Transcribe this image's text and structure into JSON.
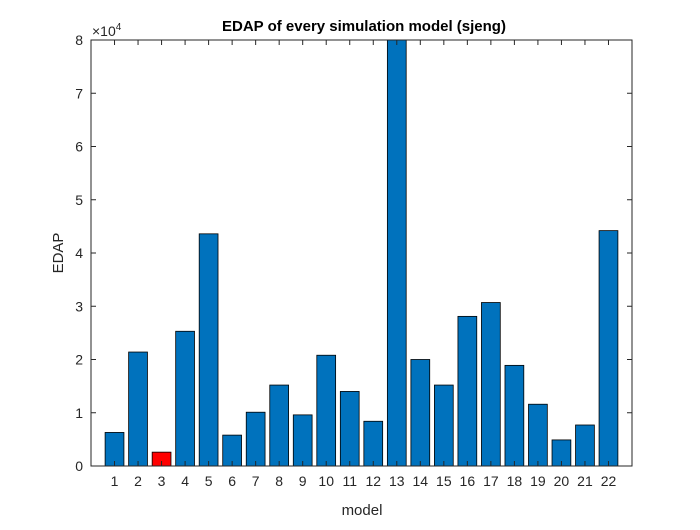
{
  "chart_data": {
    "type": "bar",
    "title": "EDAP of every simulation model (sjeng)",
    "xlabel": "model",
    "ylabel": "EDAP",
    "exponent_label": "×10",
    "exponent_power": "4",
    "categories": [
      "1",
      "2",
      "3",
      "4",
      "5",
      "6",
      "7",
      "8",
      "9",
      "10",
      "11",
      "12",
      "13",
      "14",
      "15",
      "16",
      "17",
      "18",
      "19",
      "20",
      "21",
      "22"
    ],
    "values": [
      6300,
      21400,
      2600,
      25300,
      43600,
      5800,
      10100,
      15200,
      9600,
      20800,
      14000,
      8400,
      80000,
      20000,
      15200,
      28100,
      30700,
      18900,
      11600,
      4900,
      7700,
      44200
    ],
    "ylim": [
      0,
      80000
    ],
    "yticks": [
      0,
      10000,
      20000,
      30000,
      40000,
      50000,
      60000,
      70000,
      80000
    ],
    "ytick_labels": [
      "0",
      "1",
      "2",
      "3",
      "4",
      "5",
      "6",
      "7",
      "8"
    ],
    "bar_color": "#0072BD",
    "highlight_color": "#FF0000",
    "highlight_category": "3",
    "grid": false
  }
}
